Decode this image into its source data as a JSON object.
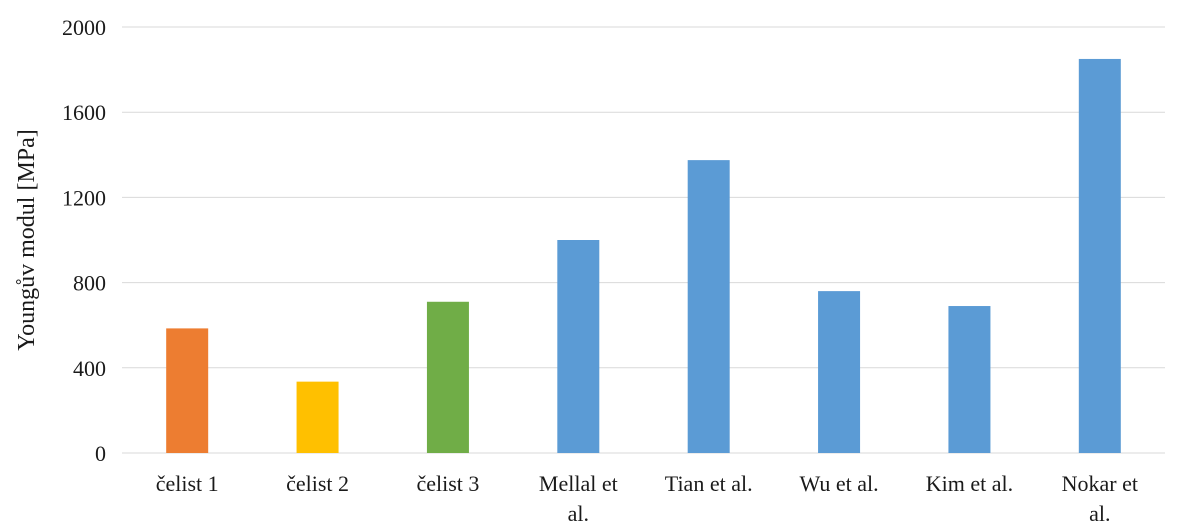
{
  "chart_data": {
    "type": "bar",
    "title": "",
    "xlabel": "",
    "ylabel": "Youngův modul [MPa]",
    "ylim": [
      0,
      2000
    ],
    "yticks": [
      0,
      400,
      800,
      1200,
      1600,
      2000
    ],
    "grid": true,
    "legend": "none",
    "categories": [
      [
        "čelist 1"
      ],
      [
        "čelist 2"
      ],
      [
        "čelist 3"
      ],
      [
        "Mellal et",
        "al."
      ],
      [
        "Tian et al."
      ],
      [
        "Wu et al."
      ],
      [
        "Kim et al."
      ],
      [
        "Nokar et",
        "al."
      ]
    ],
    "values": [
      585,
      335,
      710,
      1000,
      1375,
      760,
      690,
      1850
    ],
    "colors": [
      "#ED7D31",
      "#FFC000",
      "#70AD47",
      "#5B9BD5",
      "#5B9BD5",
      "#5B9BD5",
      "#5B9BD5",
      "#5B9BD5"
    ],
    "gridline_color": "#d9d9d9"
  }
}
